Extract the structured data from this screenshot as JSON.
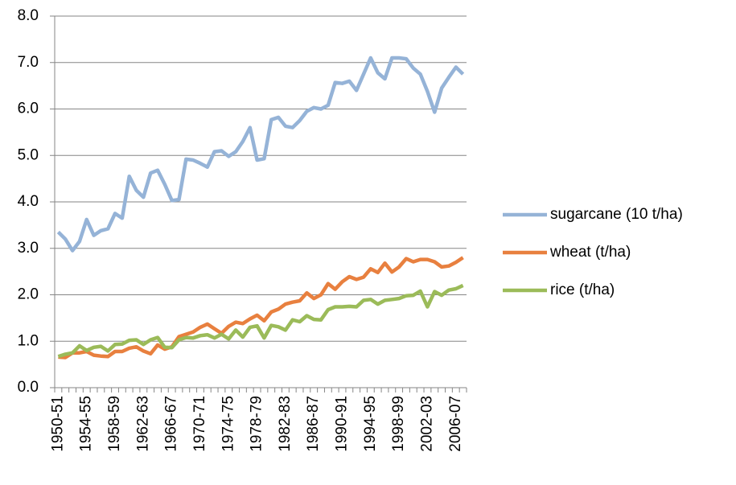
{
  "chart_data": {
    "type": "line",
    "categories": [
      "1950-51",
      null,
      null,
      null,
      "1954-55",
      null,
      null,
      null,
      "1958-59",
      null,
      null,
      null,
      "1962-63",
      null,
      null,
      null,
      "1966-67",
      null,
      null,
      null,
      "1970-71",
      null,
      null,
      null,
      "1974-75",
      null,
      null,
      null,
      "1978-79",
      null,
      null,
      null,
      "1982-83",
      null,
      null,
      null,
      "1986-87",
      null,
      null,
      null,
      "1990-91",
      null,
      null,
      null,
      "1994-95",
      null,
      null,
      null,
      "1998-99",
      null,
      null,
      null,
      "2002-03",
      null,
      null,
      null,
      "2006-07",
      null
    ],
    "series": [
      {
        "name": "sugarcane (10 t/ha)",
        "color": "#95b3d7",
        "values": [
          3.35,
          3.2,
          2.95,
          3.15,
          3.62,
          3.28,
          3.38,
          3.42,
          3.75,
          3.65,
          4.55,
          4.25,
          4.1,
          4.62,
          4.68,
          4.38,
          4.03,
          4.05,
          4.92,
          4.9,
          4.83,
          4.75,
          5.08,
          5.1,
          4.98,
          5.08,
          5.3,
          5.6,
          4.9,
          4.93,
          5.77,
          5.82,
          5.63,
          5.6,
          5.75,
          5.95,
          6.03,
          6.0,
          6.08,
          6.57,
          6.55,
          6.6,
          6.4,
          6.75,
          7.1,
          6.78,
          6.65,
          7.1,
          7.1,
          7.08,
          6.88,
          6.75,
          6.38,
          5.93,
          6.45,
          6.68,
          6.9,
          6.75
        ]
      },
      {
        "name": "wheat (t/ha)",
        "color": "#e8803f",
        "values": [
          0.66,
          0.65,
          0.75,
          0.75,
          0.78,
          0.7,
          0.68,
          0.67,
          0.78,
          0.78,
          0.85,
          0.88,
          0.79,
          0.73,
          0.92,
          0.83,
          0.88,
          1.1,
          1.15,
          1.2,
          1.3,
          1.37,
          1.27,
          1.17,
          1.32,
          1.41,
          1.38,
          1.48,
          1.56,
          1.44,
          1.63,
          1.69,
          1.8,
          1.84,
          1.87,
          2.04,
          1.92,
          2.0,
          2.24,
          2.12,
          2.28,
          2.39,
          2.33,
          2.38,
          2.56,
          2.48,
          2.68,
          2.49,
          2.6,
          2.78,
          2.71,
          2.76,
          2.76,
          2.71,
          2.6,
          2.62,
          2.7,
          2.8
        ]
      },
      {
        "name": "rice (t/ha)",
        "color": "#9bbb59",
        "values": [
          0.67,
          0.72,
          0.75,
          0.9,
          0.8,
          0.87,
          0.89,
          0.79,
          0.93,
          0.94,
          1.02,
          1.03,
          0.93,
          1.03,
          1.08,
          0.87,
          0.86,
          1.03,
          1.08,
          1.07,
          1.12,
          1.14,
          1.07,
          1.15,
          1.05,
          1.24,
          1.09,
          1.3,
          1.33,
          1.07,
          1.34,
          1.31,
          1.24,
          1.46,
          1.42,
          1.55,
          1.47,
          1.46,
          1.68,
          1.74,
          1.74,
          1.75,
          1.74,
          1.88,
          1.9,
          1.8,
          1.88,
          1.9,
          1.92,
          1.98,
          1.99,
          2.08,
          1.74,
          2.07,
          1.99,
          2.1,
          2.13,
          2.2
        ]
      }
    ],
    "ylim": [
      0,
      8
    ],
    "yticks": [
      {
        "value": 0,
        "label": "0.0"
      },
      {
        "value": 1,
        "label": "1.0"
      },
      {
        "value": 2,
        "label": "2.0"
      },
      {
        "value": 3,
        "label": "3.0"
      },
      {
        "value": 4,
        "label": "4.0"
      },
      {
        "value": 5,
        "label": "5.0"
      },
      {
        "value": 6,
        "label": "6.0"
      },
      {
        "value": 7,
        "label": "7.0"
      },
      {
        "value": 8,
        "label": "8.0"
      }
    ],
    "grid": true,
    "legend": "right"
  }
}
